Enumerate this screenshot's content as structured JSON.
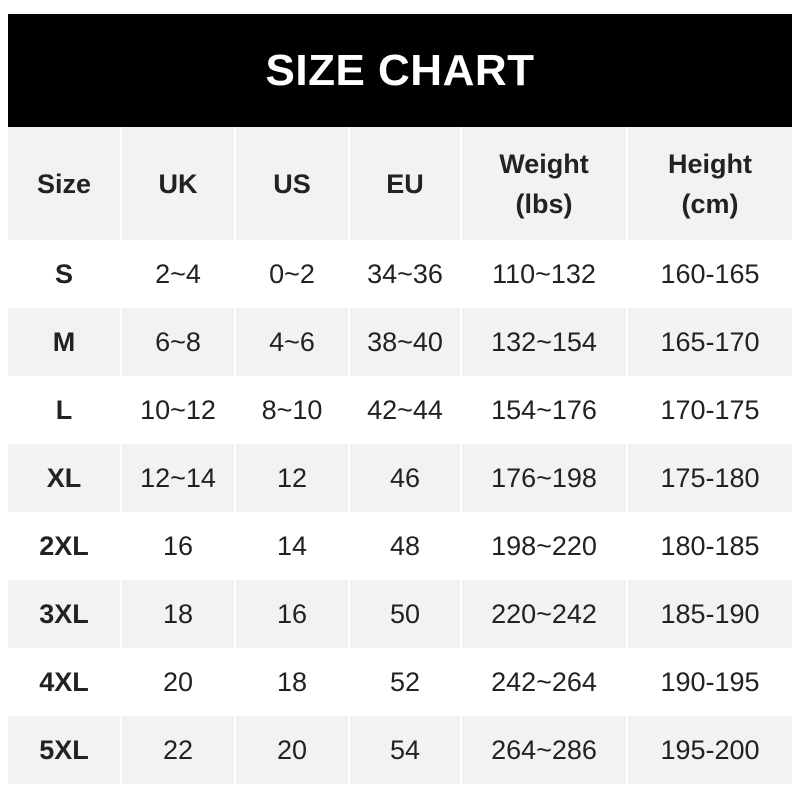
{
  "title": "SIZE CHART",
  "columns": [
    "Size",
    "UK",
    "US",
    "EU",
    "Weight\n(lbs)",
    "Height\n(cm)"
  ],
  "rows": [
    [
      "S",
      "2~4",
      "0~2",
      "34~36",
      "110~132",
      "160-165"
    ],
    [
      "M",
      "6~8",
      "4~6",
      "38~40",
      "132~154",
      "165-170"
    ],
    [
      "L",
      "10~12",
      "8~10",
      "42~44",
      "154~176",
      "170-175"
    ],
    [
      "XL",
      "12~14",
      "12",
      "46",
      "176~198",
      "175-180"
    ],
    [
      "2XL",
      "16",
      "14",
      "48",
      "198~220",
      "180-185"
    ],
    [
      "3XL",
      "18",
      "16",
      "50",
      "220~242",
      "185-190"
    ],
    [
      "4XL",
      "20",
      "18",
      "52",
      "242~264",
      "190-195"
    ],
    [
      "5XL",
      "22",
      "20",
      "54",
      "264~286",
      "195-200"
    ]
  ],
  "colors": {
    "header_bg": "#000000",
    "stripe": "#f2f2f2",
    "text": "#222222"
  }
}
